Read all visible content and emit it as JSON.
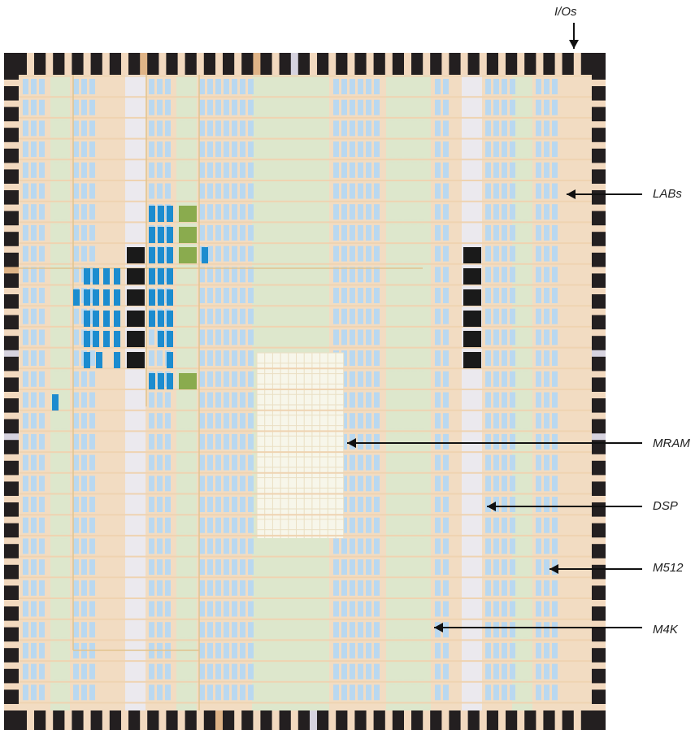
{
  "labels": {
    "ios": "I/Os",
    "labs": "LABs",
    "mram": "MRAM",
    "dsp": "DSP",
    "m512": "M512",
    "m4k": "M4K"
  },
  "colors": {
    "frame": "#231f20",
    "routing": "#f2dcc2",
    "lab": "#b9d8f0",
    "m4k": "#dde7cc",
    "m512": "#dde7cc",
    "dsp": "#ebe9ee",
    "mram": "#f7f6ea",
    "io": "#f2d9bf",
    "io_alt": "#dfb487",
    "io_gray": "#d6d3df",
    "used_blue": "#1c8ccf",
    "used_blue_light": "#3aa3e0",
    "used_black": "#1a1a1a",
    "used_green": "#8aab4e",
    "arrow": "#111111"
  }
}
